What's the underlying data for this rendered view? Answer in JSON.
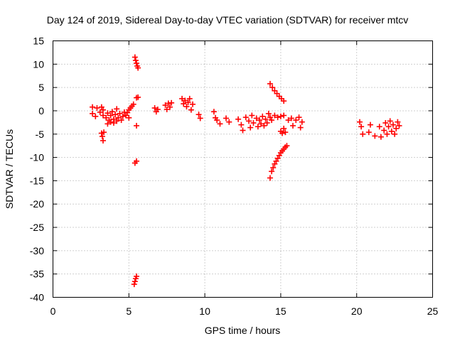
{
  "chart_data": {
    "type": "scatter",
    "title": "Day 124 of 2019, Sidereal Day-to-day VTEC variation (SDTVAR) for receiver mtcv",
    "xlabel": "GPS time / hours",
    "ylabel": "SDTVAR / TECUs",
    "xlim": [
      0,
      25
    ],
    "ylim": [
      -40,
      15
    ],
    "xticks": [
      0,
      5,
      10,
      15,
      20,
      25
    ],
    "yticks": [
      15,
      10,
      5,
      0,
      -5,
      -10,
      -15,
      -20,
      -25,
      -30,
      -35,
      -40
    ],
    "grid": true,
    "marker": "plus",
    "color": "#ff0000",
    "series": [
      {
        "name": "mtcv",
        "points": [
          [
            2.6,
            0.8
          ],
          [
            2.6,
            -0.6
          ],
          [
            2.8,
            -1.2
          ],
          [
            2.9,
            0.6
          ],
          [
            3.1,
            -0.3
          ],
          [
            3.2,
            0.8
          ],
          [
            3.3,
            -1.0
          ],
          [
            3.3,
            0.2
          ],
          [
            3.2,
            -4.8
          ],
          [
            3.25,
            -5.5
          ],
          [
            3.3,
            -6.4
          ],
          [
            3.35,
            -4.6
          ],
          [
            3.5,
            -1.5
          ],
          [
            3.6,
            -0.5
          ],
          [
            3.7,
            -2.0
          ],
          [
            3.8,
            -1.0
          ],
          [
            3.8,
            -2.4
          ],
          [
            3.9,
            -0.2
          ],
          [
            4.0,
            -1.8
          ],
          [
            4.0,
            -2.6
          ],
          [
            4.1,
            -0.8
          ],
          [
            4.2,
            -2.2
          ],
          [
            4.3,
            -1.5
          ],
          [
            4.4,
            -0.6
          ],
          [
            4.5,
            -2.0
          ],
          [
            4.6,
            -1.2
          ],
          [
            4.7,
            -0.3
          ],
          [
            4.8,
            -1.0
          ],
          [
            4.9,
            -0.4
          ],
          [
            5.0,
            0.2
          ],
          [
            5.1,
            0.6
          ],
          [
            5.2,
            1.0
          ],
          [
            5.3,
            1.4
          ],
          [
            5.0,
            -1.5
          ],
          [
            4.2,
            0.4
          ],
          [
            3.6,
            -2.8
          ],
          [
            5.4,
            11.5
          ],
          [
            5.45,
            10.8
          ],
          [
            5.5,
            10.2
          ],
          [
            5.55,
            9.6
          ],
          [
            5.6,
            9.2
          ],
          [
            5.5,
            2.8
          ],
          [
            5.6,
            2.9
          ],
          [
            5.5,
            -3.2
          ],
          [
            5.4,
            -11.2
          ],
          [
            5.5,
            -10.8
          ],
          [
            5.35,
            -37.2
          ],
          [
            5.4,
            -36.6
          ],
          [
            5.45,
            -36.0
          ],
          [
            5.5,
            -35.5
          ],
          [
            6.7,
            0.6
          ],
          [
            6.8,
            -0.2
          ],
          [
            6.9,
            0.3
          ],
          [
            7.4,
            1.2
          ],
          [
            7.5,
            0.3
          ],
          [
            7.6,
            1.6
          ],
          [
            7.7,
            0.8
          ],
          [
            7.8,
            1.7
          ],
          [
            8.5,
            2.6
          ],
          [
            8.6,
            1.5
          ],
          [
            8.7,
            2.2
          ],
          [
            8.8,
            0.9
          ],
          [
            8.9,
            1.8
          ],
          [
            9.0,
            2.6
          ],
          [
            9.1,
            0.2
          ],
          [
            9.2,
            1.4
          ],
          [
            9.6,
            -0.8
          ],
          [
            9.7,
            -1.6
          ],
          [
            10.6,
            -0.2
          ],
          [
            10.7,
            -1.5
          ],
          [
            10.8,
            -2.0
          ],
          [
            11.0,
            -2.8
          ],
          [
            11.4,
            -1.6
          ],
          [
            11.6,
            -2.4
          ],
          [
            12.2,
            -1.8
          ],
          [
            12.4,
            -3.0
          ],
          [
            12.5,
            -4.2
          ],
          [
            12.7,
            -1.4
          ],
          [
            12.9,
            -2.2
          ],
          [
            13.0,
            -3.6
          ],
          [
            13.1,
            -1.0
          ],
          [
            13.2,
            -2.6
          ],
          [
            13.4,
            -1.6
          ],
          [
            13.5,
            -3.4
          ],
          [
            13.6,
            -2.0
          ],
          [
            13.7,
            -2.8
          ],
          [
            13.8,
            -1.2
          ],
          [
            13.9,
            -3.2
          ],
          [
            14.0,
            -1.8
          ],
          [
            14.1,
            -2.6
          ],
          [
            14.2,
            -0.6
          ],
          [
            14.3,
            -1.4
          ],
          [
            14.4,
            -2.0
          ],
          [
            14.6,
            -1.0
          ],
          [
            14.8,
            -1.4
          ],
          [
            15.0,
            -1.2
          ],
          [
            15.2,
            -1.0
          ],
          [
            14.3,
            5.8
          ],
          [
            14.45,
            5.0
          ],
          [
            14.6,
            4.3
          ],
          [
            14.75,
            3.7
          ],
          [
            14.9,
            3.1
          ],
          [
            15.05,
            2.6
          ],
          [
            15.2,
            2.1
          ],
          [
            14.3,
            -14.4
          ],
          [
            14.4,
            -13.0
          ],
          [
            14.5,
            -12.2
          ],
          [
            14.6,
            -11.4
          ],
          [
            14.7,
            -10.8
          ],
          [
            14.8,
            -10.2
          ],
          [
            14.9,
            -9.6
          ],
          [
            15.0,
            -9.0
          ],
          [
            15.1,
            -8.6
          ],
          [
            15.2,
            -8.2
          ],
          [
            15.3,
            -7.8
          ],
          [
            15.4,
            -7.5
          ],
          [
            15.0,
            -4.4
          ],
          [
            15.1,
            -4.8
          ],
          [
            15.2,
            -3.8
          ],
          [
            15.3,
            -4.6
          ],
          [
            15.5,
            -2.0
          ],
          [
            15.7,
            -1.6
          ],
          [
            15.8,
            -3.2
          ],
          [
            16.0,
            -2.0
          ],
          [
            16.2,
            -1.4
          ],
          [
            16.3,
            -3.6
          ],
          [
            16.4,
            -2.4
          ],
          [
            20.2,
            -2.4
          ],
          [
            20.3,
            -3.4
          ],
          [
            20.4,
            -5.0
          ],
          [
            20.8,
            -4.6
          ],
          [
            20.9,
            -3.0
          ],
          [
            21.2,
            -5.4
          ],
          [
            21.5,
            -3.4
          ],
          [
            21.6,
            -5.6
          ],
          [
            21.8,
            -4.2
          ],
          [
            21.9,
            -2.6
          ],
          [
            22.0,
            -5.0
          ],
          [
            22.1,
            -3.4
          ],
          [
            22.2,
            -2.2
          ],
          [
            22.3,
            -4.4
          ],
          [
            22.4,
            -3.0
          ],
          [
            22.5,
            -5.0
          ],
          [
            22.6,
            -3.8
          ],
          [
            22.7,
            -2.4
          ],
          [
            22.8,
            -3.2
          ]
        ]
      }
    ]
  }
}
